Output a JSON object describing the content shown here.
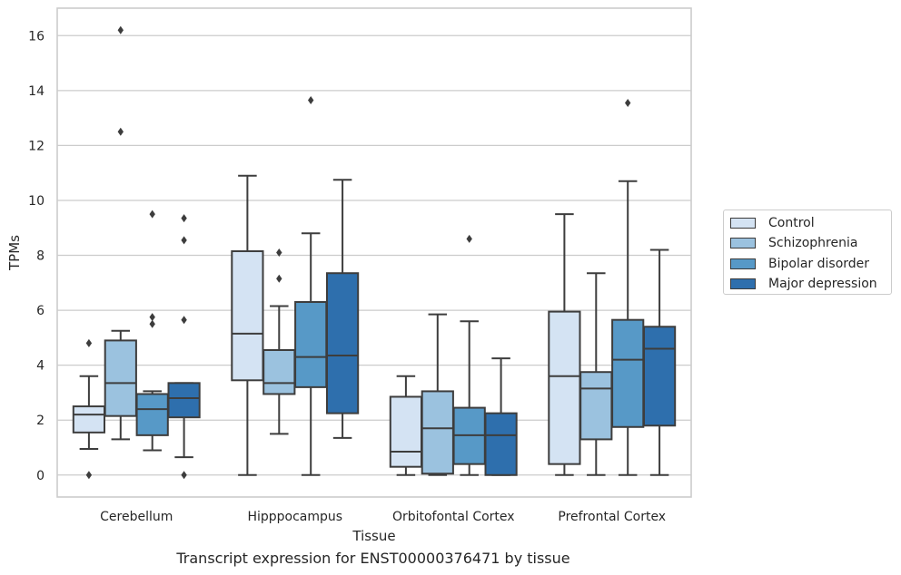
{
  "chart_data": {
    "type": "boxplot",
    "title": "",
    "xlabel": "Tissue",
    "ylabel": "TPMs",
    "caption": "Transcript expression for ENST00000376471 by tissue",
    "ylim": [
      -0.8,
      17
    ],
    "yticks": [
      0,
      2,
      4,
      6,
      8,
      10,
      12,
      14,
      16
    ],
    "grid": "horizontal",
    "legend_position": "right",
    "categories": [
      "Cerebellum",
      "Hipppocampus",
      "Orbitofontal Cortex",
      "Prefrontal Cortex"
    ],
    "series": [
      {
        "name": "Control",
        "color": "#d4e3f3",
        "boxes": [
          {
            "whislo": 0.95,
            "q1": 1.55,
            "med": 2.2,
            "q3": 2.5,
            "whishi": 3.6,
            "fliers": [
              4.8,
              0.0
            ]
          },
          {
            "whislo": 0.0,
            "q1": 3.45,
            "med": 5.15,
            "q3": 8.15,
            "whishi": 10.9,
            "fliers": []
          },
          {
            "whislo": 0.0,
            "q1": 0.3,
            "med": 0.85,
            "q3": 2.85,
            "whishi": 3.6,
            "fliers": []
          },
          {
            "whislo": 0.0,
            "q1": 0.4,
            "med": 3.6,
            "q3": 5.95,
            "whishi": 9.5,
            "fliers": []
          }
        ]
      },
      {
        "name": "Schizophrenia",
        "color": "#9bc2df",
        "boxes": [
          {
            "whislo": 1.3,
            "q1": 2.15,
            "med": 3.35,
            "q3": 4.9,
            "whishi": 5.25,
            "fliers": [
              16.2,
              12.5
            ]
          },
          {
            "whislo": 1.5,
            "q1": 2.95,
            "med": 3.35,
            "q3": 4.55,
            "whishi": 6.15,
            "fliers": [
              8.1,
              7.15
            ]
          },
          {
            "whislo": 0.0,
            "q1": 0.05,
            "med": 1.7,
            "q3": 3.05,
            "whishi": 5.85,
            "fliers": []
          },
          {
            "whislo": 0.0,
            "q1": 1.3,
            "med": 3.15,
            "q3": 3.75,
            "whishi": 7.35,
            "fliers": []
          }
        ]
      },
      {
        "name": "Bipolar disorder",
        "color": "#5799c7",
        "boxes": [
          {
            "whislo": 0.9,
            "q1": 1.45,
            "med": 2.4,
            "q3": 2.95,
            "whishi": 3.05,
            "fliers": [
              9.5,
              5.75,
              5.5
            ]
          },
          {
            "whislo": 0.0,
            "q1": 3.2,
            "med": 4.3,
            "q3": 6.3,
            "whishi": 8.8,
            "fliers": [
              13.65
            ]
          },
          {
            "whislo": 0.0,
            "q1": 0.4,
            "med": 1.45,
            "q3": 2.45,
            "whishi": 5.6,
            "fliers": [
              8.6
            ]
          },
          {
            "whislo": 0.0,
            "q1": 1.75,
            "med": 4.2,
            "q3": 5.65,
            "whishi": 10.7,
            "fliers": [
              13.55
            ]
          }
        ]
      },
      {
        "name": "Major depression",
        "color": "#2e6fad",
        "boxes": [
          {
            "whislo": 0.65,
            "q1": 2.1,
            "med": 2.8,
            "q3": 3.35,
            "whishi": 3.35,
            "fliers": [
              9.35,
              8.55,
              5.65,
              0.0
            ]
          },
          {
            "whislo": 1.35,
            "q1": 2.25,
            "med": 4.35,
            "q3": 7.35,
            "whishi": 10.75,
            "fliers": []
          },
          {
            "whislo": 0.0,
            "q1": 0.0,
            "med": 1.45,
            "q3": 2.25,
            "whishi": 4.25,
            "fliers": []
          },
          {
            "whislo": 0.0,
            "q1": 1.8,
            "med": 4.6,
            "q3": 5.4,
            "whishi": 8.2,
            "fliers": []
          }
        ]
      }
    ]
  }
}
